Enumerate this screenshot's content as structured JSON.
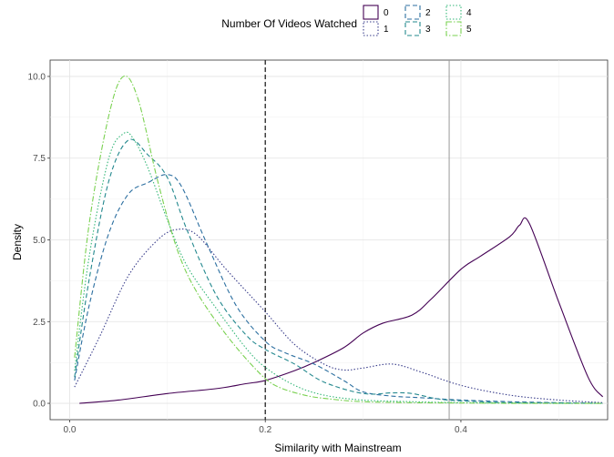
{
  "chart_data": {
    "type": "line",
    "title": "",
    "xlabel": "Similarity with Mainstream",
    "ylabel": "Density",
    "xlim": [
      -0.02,
      0.55
    ],
    "ylim": [
      -0.5,
      10.5
    ],
    "x_ticks": [
      0.0,
      0.2,
      0.4
    ],
    "x_tick_labels": [
      "0.0",
      "0.2",
      "0.4"
    ],
    "y_ticks": [
      0,
      2.5,
      5,
      7.5,
      10
    ],
    "y_tick_labels": [
      "0.0",
      "2.5",
      "5.0",
      "7.5",
      "10.0"
    ],
    "grid": true,
    "legend": {
      "title": "Number Of Videos Watched",
      "placement": "top",
      "entries": [
        "0",
        "1",
        "2",
        "3",
        "4",
        "5"
      ]
    },
    "reference_lines": [
      {
        "x": 0.2,
        "style": "dashed",
        "color": "#222222"
      },
      {
        "x": 0.388,
        "style": "solid",
        "color": "#999999"
      }
    ],
    "series": [
      {
        "name": "0",
        "color": "#440154",
        "dash": "solid",
        "x": [
          0.01,
          0.05,
          0.1,
          0.15,
          0.18,
          0.2,
          0.23,
          0.25,
          0.28,
          0.3,
          0.32,
          0.35,
          0.37,
          0.4,
          0.42,
          0.45,
          0.46,
          0.47,
          0.5,
          0.53,
          0.545
        ],
        "y": [
          0.0,
          0.1,
          0.3,
          0.45,
          0.6,
          0.7,
          1.0,
          1.25,
          1.7,
          2.15,
          2.45,
          2.7,
          3.2,
          4.1,
          4.5,
          5.1,
          5.45,
          5.5,
          3.1,
          0.8,
          0.2
        ]
      },
      {
        "name": "1",
        "color": "#3b3f8c",
        "dash": "dotted",
        "x": [
          0.005,
          0.03,
          0.06,
          0.09,
          0.11,
          0.13,
          0.16,
          0.2,
          0.23,
          0.26,
          0.28,
          0.3,
          0.33,
          0.36,
          0.4,
          0.45,
          0.5,
          0.545
        ],
        "y": [
          0.5,
          2.0,
          3.9,
          5.0,
          5.32,
          5.15,
          4.1,
          2.8,
          1.8,
          1.2,
          1.02,
          1.08,
          1.2,
          0.95,
          0.55,
          0.25,
          0.1,
          0.02
        ]
      },
      {
        "name": "2",
        "color": "#2c6fa0",
        "dash": "dashed",
        "x": [
          0.005,
          0.02,
          0.04,
          0.06,
          0.08,
          0.1,
          0.115,
          0.14,
          0.17,
          0.2,
          0.22,
          0.25,
          0.28,
          0.3,
          0.33,
          0.36,
          0.4,
          0.45,
          0.5,
          0.545
        ],
        "y": [
          0.7,
          3.0,
          5.2,
          6.4,
          6.75,
          7.0,
          6.6,
          4.9,
          3.0,
          1.9,
          1.55,
          1.2,
          0.7,
          0.35,
          0.22,
          0.17,
          0.1,
          0.05,
          0.02,
          0.0
        ]
      },
      {
        "name": "3",
        "color": "#23888e",
        "dash": "dashed",
        "x": [
          0.005,
          0.02,
          0.04,
          0.06,
          0.08,
          0.1,
          0.12,
          0.15,
          0.18,
          0.2,
          0.23,
          0.26,
          0.3,
          0.33,
          0.35,
          0.38,
          0.42,
          0.45,
          0.5,
          0.545
        ],
        "y": [
          0.8,
          3.8,
          6.8,
          8.05,
          7.6,
          6.9,
          5.3,
          3.3,
          2.1,
          1.65,
          1.2,
          0.65,
          0.3,
          0.32,
          0.3,
          0.12,
          0.05,
          0.02,
          0.01,
          0.0
        ]
      },
      {
        "name": "4",
        "color": "#35b779",
        "dash": "dotted",
        "x": [
          0.005,
          0.02,
          0.04,
          0.055,
          0.065,
          0.08,
          0.1,
          0.12,
          0.15,
          0.18,
          0.2,
          0.23,
          0.26,
          0.3,
          0.35,
          0.4,
          0.45,
          0.5,
          0.545
        ],
        "y": [
          1.0,
          4.5,
          7.5,
          8.25,
          8.1,
          7.2,
          5.6,
          4.2,
          2.9,
          1.7,
          1.1,
          0.55,
          0.25,
          0.1,
          0.05,
          0.02,
          0.01,
          0.0,
          0.0
        ]
      },
      {
        "name": "5",
        "color": "#7ad151",
        "dash": "dashdot",
        "x": [
          0.005,
          0.02,
          0.04,
          0.055,
          0.07,
          0.09,
          0.11,
          0.13,
          0.16,
          0.19,
          0.21,
          0.24,
          0.27,
          0.3,
          0.35,
          0.4,
          0.45,
          0.5,
          0.545
        ],
        "y": [
          1.4,
          5.5,
          8.8,
          10.0,
          9.3,
          6.8,
          4.7,
          3.4,
          2.1,
          1.05,
          0.55,
          0.25,
          0.12,
          0.05,
          0.02,
          0.01,
          0.0,
          0.0,
          0.0
        ]
      }
    ]
  }
}
